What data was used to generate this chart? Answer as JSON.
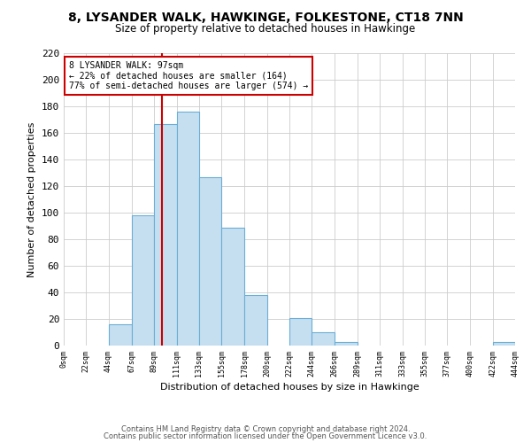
{
  "title": "8, LYSANDER WALK, HAWKINGE, FOLKESTONE, CT18 7NN",
  "subtitle": "Size of property relative to detached houses in Hawkinge",
  "xlabel": "Distribution of detached houses by size in Hawkinge",
  "ylabel": "Number of detached properties",
  "footnote1": "Contains HM Land Registry data © Crown copyright and database right 2024.",
  "footnote2": "Contains public sector information licensed under the Open Government Licence v3.0.",
  "bar_edges": [
    0,
    22,
    44,
    67,
    89,
    111,
    133,
    155,
    178,
    200,
    222,
    244,
    266,
    289,
    311,
    333,
    355,
    377,
    400,
    422,
    444
  ],
  "bar_heights": [
    0,
    0,
    16,
    98,
    167,
    176,
    127,
    89,
    38,
    0,
    21,
    10,
    3,
    0,
    0,
    0,
    0,
    0,
    0,
    3
  ],
  "bar_color": "#c6dff0",
  "bar_edgecolor": "#6aaed6",
  "property_value": 97,
  "redline_color": "#cc0000",
  "annotation_text": "8 LYSANDER WALK: 97sqm\n← 22% of detached houses are smaller (164)\n77% of semi-detached houses are larger (574) →",
  "annotation_box_edgecolor": "#cc0000",
  "ylim": [
    0,
    220
  ],
  "yticks": [
    0,
    20,
    40,
    60,
    80,
    100,
    120,
    140,
    160,
    180,
    200,
    220
  ],
  "tick_labels": [
    "0sqm",
    "22sqm",
    "44sqm",
    "67sqm",
    "89sqm",
    "111sqm",
    "133sqm",
    "155sqm",
    "178sqm",
    "200sqm",
    "222sqm",
    "244sqm",
    "266sqm",
    "289sqm",
    "311sqm",
    "333sqm",
    "355sqm",
    "377sqm",
    "400sqm",
    "422sqm",
    "444sqm"
  ]
}
